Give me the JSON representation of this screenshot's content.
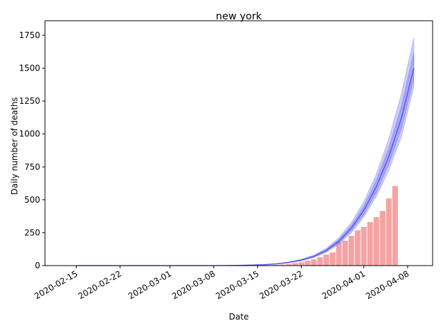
{
  "chart_data": {
    "type": "bar",
    "title": "new york",
    "xlabel": "Date",
    "ylabel": "Daily number of deaths",
    "x": [
      "2020-03-14",
      "2020-03-15",
      "2020-03-16",
      "2020-03-17",
      "2020-03-18",
      "2020-03-19",
      "2020-03-20",
      "2020-03-21",
      "2020-03-22",
      "2020-03-23",
      "2020-03-24",
      "2020-03-25",
      "2020-03-26",
      "2020-03-27",
      "2020-03-28",
      "2020-03-29",
      "2020-03-30",
      "2020-03-31",
      "2020-04-01",
      "2020-04-02",
      "2020-04-03",
      "2020-04-04",
      "2020-04-05",
      "2020-04-06"
    ],
    "values": [
      0,
      1,
      2,
      3,
      5,
      8,
      12,
      19,
      26,
      37,
      47,
      63,
      84,
      100,
      179,
      189,
      226,
      268,
      294,
      331,
      368,
      415,
      510,
      604
    ],
    "color": "#f4a3a3",
    "curve": {
      "color": "#4a4af0",
      "band_color": "#8080f0",
      "x": [
        "2020-02-15",
        "2020-03-01",
        "2020-03-08",
        "2020-03-10",
        "2020-03-12",
        "2020-03-14",
        "2020-03-16",
        "2020-03-18",
        "2020-03-20",
        "2020-03-22",
        "2020-03-24",
        "2020-03-26",
        "2020-03-28",
        "2020-03-30",
        "2020-04-01",
        "2020-04-03",
        "2020-04-05",
        "2020-04-07",
        "2020-04-09"
      ],
      "values": [
        0,
        0,
        0,
        1,
        2,
        4,
        7,
        13,
        24,
        42,
        70,
        115,
        185,
        285,
        420,
        600,
        830,
        1120,
        1500
      ],
      "inner_lower": [
        0,
        0,
        0,
        1,
        2,
        4,
        6,
        12,
        22,
        39,
        65,
        107,
        172,
        265,
        390,
        555,
        770,
        1040,
        1420
      ],
      "inner_upper": [
        0,
        0,
        0,
        1,
        2,
        4,
        7,
        14,
        26,
        45,
        75,
        123,
        198,
        305,
        452,
        648,
        895,
        1210,
        1620
      ],
      "outer_lower": [
        0,
        0,
        0,
        1,
        1,
        3,
        6,
        11,
        21,
        37,
        62,
        102,
        163,
        250,
        368,
        525,
        725,
        975,
        1360
      ],
      "outer_upper": [
        0,
        0,
        0,
        1,
        2,
        5,
        8,
        15,
        28,
        48,
        80,
        131,
        212,
        328,
        485,
        697,
        965,
        1305,
        1730
      ]
    },
    "xlim": [
      "2020-02-10",
      "2020-04-12"
    ],
    "xticks": [
      "2020-02-15",
      "2020-02-22",
      "2020-03-01",
      "2020-03-08",
      "2020-03-15",
      "2020-03-22",
      "2020-04-01",
      "2020-04-08"
    ],
    "ylim": [
      0,
      1860
    ],
    "yticks": [
      0,
      250,
      500,
      750,
      1000,
      1250,
      1500,
      1750
    ]
  }
}
